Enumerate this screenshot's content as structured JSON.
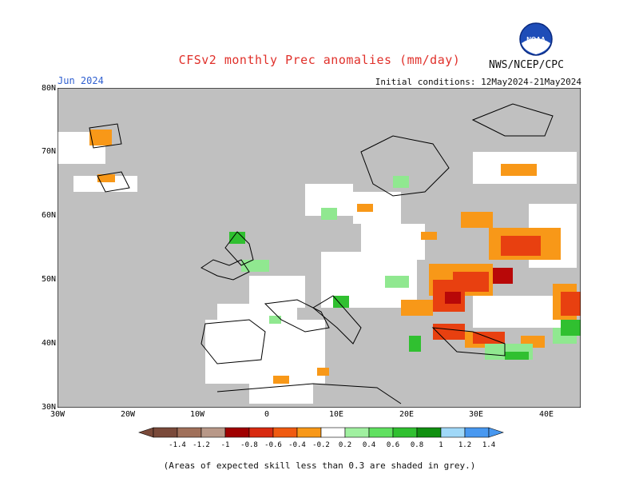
{
  "title": "CFSv2 monthly Prec anomalies (mm/day)",
  "agency": "NWS/NCEP/CPC",
  "logo_text": "NOAA",
  "month": "Jun 2024",
  "initial_conditions": "Initial conditions: 12May2024-21May2024",
  "footnote": "(Areas of expected skill less than 0.3 are shaded in grey.)",
  "colors": {
    "title": "#e0302a",
    "month": "#3060d0",
    "grey_mask": "#c0c0c0",
    "land_white": "#ffffff",
    "coast": "#000000"
  },
  "axes": {
    "lat_labels": [
      "80N",
      "70N",
      "60N",
      "50N",
      "40N",
      "30N"
    ],
    "lon_labels": [
      "30W",
      "20W",
      "10W",
      "0",
      "10E",
      "20E",
      "30E",
      "40E"
    ]
  },
  "colorbar": {
    "labels": [
      "-1.4",
      "-1.2",
      "-1",
      "-0.8",
      "-0.6",
      "-0.4",
      "-0.2",
      "0.2",
      "0.4",
      "0.6",
      "0.8",
      "1",
      "1.2",
      "1.4"
    ],
    "colors": [
      "#7a4a3a",
      "#a0705a",
      "#b89888",
      "#a00000",
      "#d82a10",
      "#f05a10",
      "#f89818",
      "#ffffff",
      "#a0f0a0",
      "#60e060",
      "#30c030",
      "#109010",
      "#a0d8f8",
      "#4898f0"
    ]
  }
}
